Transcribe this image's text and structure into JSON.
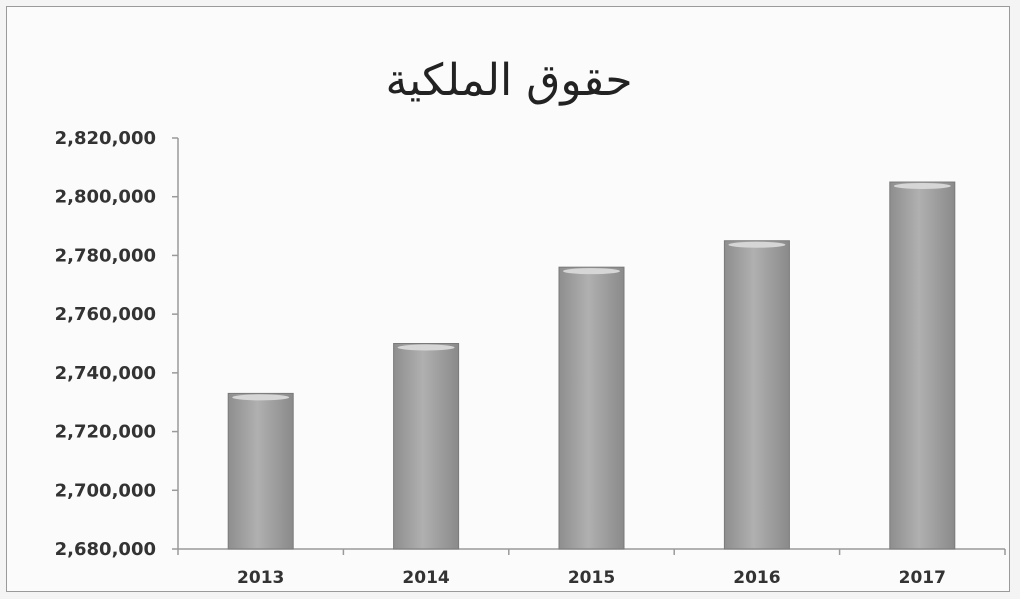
{
  "chart_data": {
    "type": "bar",
    "title": "حقوق الملكية",
    "categories": [
      "2013",
      "2014",
      "2015",
      "2016",
      "2017"
    ],
    "values": [
      2733000,
      2750000,
      2776000,
      2785000,
      2805000
    ],
    "ylim": [
      2680000,
      2820000
    ],
    "yticks": [
      "2,680,000",
      "2,700,000",
      "2,720,000",
      "2,740,000",
      "2,760,000",
      "2,780,000",
      "2,800,000",
      "2,820,000"
    ],
    "ytick_values": [
      2680000,
      2700000,
      2720000,
      2740000,
      2760000,
      2780000,
      2800000,
      2820000
    ],
    "grid": false,
    "bar_color": "#a3a3a3"
  }
}
